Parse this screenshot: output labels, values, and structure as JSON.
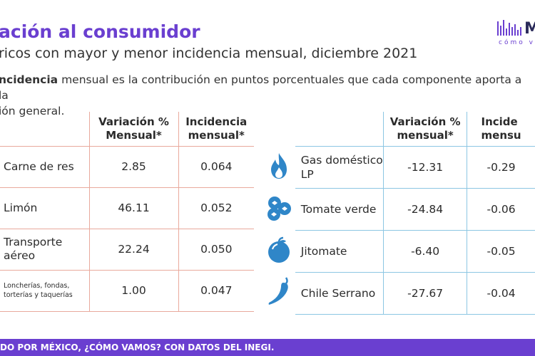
{
  "header": {
    "title": "ación al consumidor",
    "subtitle": "ricos con mayor y menor incidencia mensual, diciembre 2021",
    "desc_bold": "ncidencia",
    "desc_rest": " mensual es la contribución en puntos porcentuales que cada componente aporta a la",
    "desc_line2": "ión general."
  },
  "logo": {
    "letter": "M",
    "sub": "cómo v",
    "color": "#6a3fd0"
  },
  "table_high": {
    "headers": [
      "Variación %\nMensual*",
      "Incidencia\nmensual*"
    ],
    "rows": [
      {
        "name": "Carne de res",
        "variacion": "2.85",
        "incidencia": "0.064"
      },
      {
        "name": "Limón",
        "variacion": "46.11",
        "incidencia": "0.052"
      },
      {
        "name": "Transporte\naéreo",
        "variacion": "22.24",
        "incidencia": "0.050"
      },
      {
        "name": "Loncherías, fondas,\ntorterías y taquerías",
        "variacion": "1.00",
        "incidencia": "0.047"
      }
    ],
    "accent": "#e9a99c"
  },
  "table_low": {
    "headers": [
      "Variación %\nmensual*",
      "Incide\nmensu"
    ],
    "rows": [
      {
        "icon": "flame-icon",
        "name": "Gas doméstico\nLP",
        "variacion": "-12.31",
        "incidencia": "-0.29"
      },
      {
        "icon": "tomatoes-icon",
        "name": "Tomate verde",
        "variacion": "-24.84",
        "incidencia": "-0.06"
      },
      {
        "icon": "jitomate-icon",
        "name": "Jitomate",
        "variacion": "-6.40",
        "incidencia": "-0.05"
      },
      {
        "icon": "chili-pepper-icon",
        "name": "Chile Serrano",
        "variacion": "-27.67",
        "incidencia": "-0.04"
      }
    ],
    "accent": "#8cc6e3",
    "icon_color": "#2f86c8"
  },
  "footer": {
    "text": "DO POR MÉXICO, ¿CÓMO VAMOS? CON DATOS DEL INEGI."
  }
}
